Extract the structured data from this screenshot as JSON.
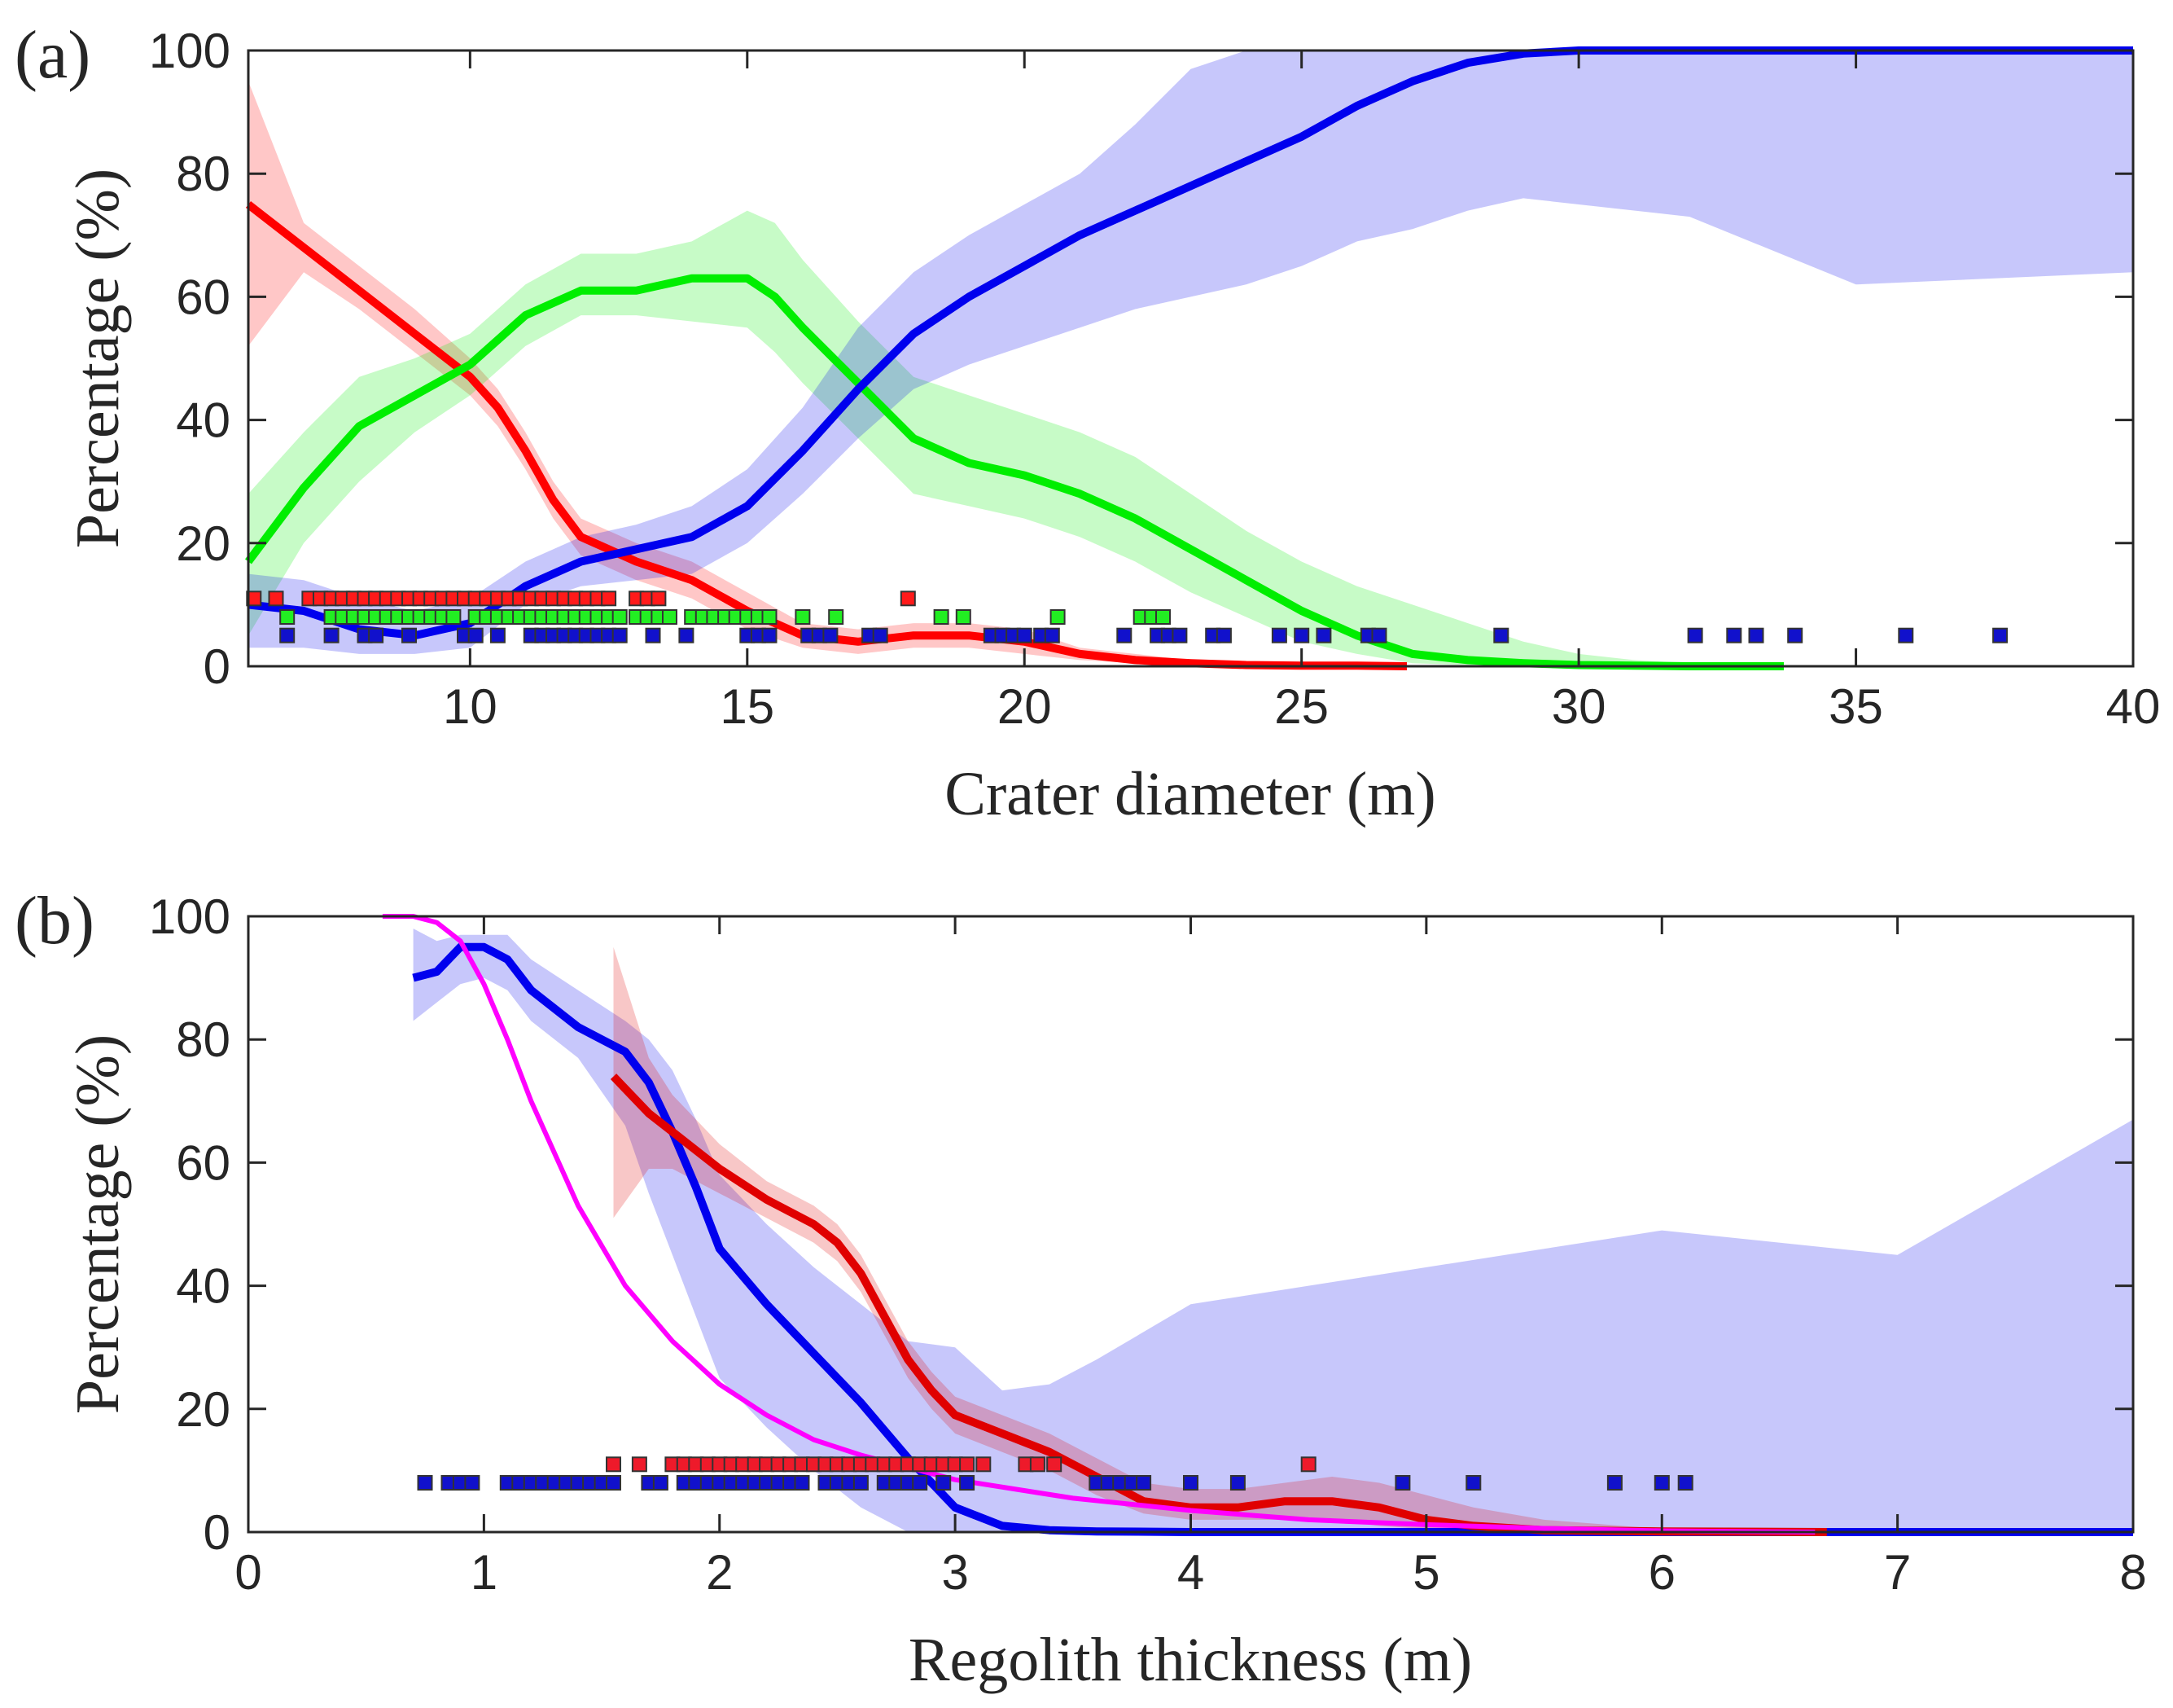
{
  "chart_data": [
    {
      "type": "line",
      "panel_label": "(a)",
      "xlabel": "Crater diameter (m)",
      "ylabel": "Percentage (%)",
      "xlim": [
        6,
        40
      ],
      "ylim": [
        0,
        100
      ],
      "xticks": [
        10,
        15,
        20,
        25,
        30,
        35,
        40
      ],
      "yticks": [
        0,
        20,
        40,
        60,
        80,
        100
      ],
      "series": [
        {
          "name": "red",
          "color": "#ff0000",
          "x": [
            6,
            7,
            8,
            9,
            10,
            10.5,
            11,
            11.5,
            12,
            13,
            14,
            15,
            16,
            17,
            18,
            19,
            20,
            21,
            22,
            23,
            24,
            25,
            26,
            26.9
          ],
          "y": [
            75,
            68,
            61,
            54,
            47,
            42,
            35,
            27,
            21,
            17,
            14,
            9,
            5,
            4,
            5,
            5,
            4,
            2,
            1,
            0.5,
            0.2,
            0.1,
            0.1,
            0
          ],
          "band_lower": [
            52,
            64,
            58,
            51,
            44,
            39,
            32,
            24,
            18,
            14,
            11,
            6,
            3,
            2,
            3,
            3,
            2,
            1,
            0.5,
            0.1,
            0,
            0,
            0,
            0
          ],
          "band_upper": [
            95,
            72,
            65,
            58,
            50,
            45,
            38,
            30,
            24,
            20,
            17,
            12,
            7,
            6,
            7,
            7,
            6,
            3,
            2,
            1,
            0.5,
            0.3,
            0.2,
            0.1
          ]
        },
        {
          "name": "green",
          "color": "#00ee00",
          "x": [
            6,
            7,
            8,
            9,
            10,
            11,
            12,
            13,
            14,
            15,
            15.5,
            16,
            17,
            18,
            19,
            20,
            21,
            22,
            23,
            24,
            25,
            26,
            27,
            28,
            29,
            30,
            31,
            32,
            33,
            33.7
          ],
          "y": [
            17,
            29,
            39,
            44,
            49,
            57,
            61,
            61,
            63,
            63,
            60,
            55,
            46,
            37,
            33,
            31,
            28,
            24,
            19,
            14,
            9,
            5,
            2,
            1,
            0.5,
            0.2,
            0.1,
            0,
            0,
            0
          ],
          "band_lower": [
            5,
            20,
            30,
            38,
            44,
            52,
            57,
            57,
            56,
            55,
            51,
            46,
            37,
            28,
            26,
            24,
            21,
            17,
            12,
            8,
            4,
            2,
            0.5,
            0.2,
            0,
            0,
            0,
            0,
            0,
            0
          ],
          "band_upper": [
            28,
            38,
            47,
            50,
            54,
            62,
            67,
            67,
            69,
            74,
            72,
            66,
            56,
            47,
            44,
            41,
            38,
            34,
            28,
            22,
            17,
            13,
            10,
            7,
            4,
            2,
            1,
            0.5,
            0.2,
            0
          ]
        },
        {
          "name": "blue",
          "color": "#0000ee",
          "x": [
            6,
            7,
            8,
            9,
            10,
            11,
            12,
            13,
            14,
            15,
            16,
            17,
            18,
            19,
            20,
            21,
            22,
            23,
            24,
            25,
            26,
            27,
            28,
            29,
            30,
            32,
            35,
            40
          ],
          "y": [
            10,
            9,
            6,
            5,
            7,
            13,
            17,
            19,
            21,
            26,
            35,
            45,
            54,
            60,
            65,
            70,
            74,
            78,
            82,
            86,
            91,
            95,
            98,
            99.5,
            100,
            100,
            100,
            100
          ],
          "band_lower": [
            3,
            3,
            2,
            2,
            3,
            10,
            13,
            14,
            15,
            20,
            28,
            37,
            45,
            49,
            52,
            55,
            58,
            60,
            62,
            65,
            69,
            71,
            74,
            76,
            75,
            73,
            62,
            64
          ],
          "band_upper": [
            15,
            14,
            11,
            9,
            11,
            17,
            21,
            23,
            26,
            32,
            42,
            55,
            64,
            70,
            75,
            80,
            88,
            97,
            100,
            100,
            100,
            100,
            100,
            100,
            100,
            100,
            100,
            100
          ]
        }
      ],
      "scatter": [
        {
          "name": "red",
          "color": "#ff1a1a",
          "y": 11,
          "x": [
            6.1,
            6.5,
            7.1,
            7.3,
            7.5,
            7.7,
            7.9,
            8.1,
            8.3,
            8.5,
            8.7,
            8.9,
            9.1,
            9.3,
            9.5,
            9.7,
            9.9,
            10.1,
            10.3,
            10.5,
            10.7,
            10.9,
            11.1,
            11.3,
            11.5,
            11.7,
            11.9,
            12.1,
            12.3,
            12.5,
            13.0,
            13.2,
            13.4,
            17.9
          ]
        },
        {
          "name": "green",
          "color": "#22ee22",
          "y": 8,
          "x": [
            6.7,
            7.5,
            7.7,
            7.9,
            8.1,
            8.3,
            8.5,
            8.7,
            8.9,
            9.1,
            9.3,
            9.5,
            9.7,
            10.1,
            10.3,
            10.5,
            10.7,
            10.9,
            11.1,
            11.3,
            11.5,
            11.7,
            11.9,
            12.1,
            12.3,
            12.5,
            12.7,
            13.0,
            13.2,
            13.4,
            13.6,
            14.0,
            14.2,
            14.4,
            14.6,
            14.8,
            15.0,
            15.2,
            15.4,
            16.0,
            16.6,
            18.5,
            18.9,
            20.6,
            22.1,
            22.3,
            22.5
          ]
        },
        {
          "name": "blue",
          "color": "#1111cc",
          "y": 5,
          "x": [
            6.7,
            7.5,
            8.1,
            8.3,
            8.9,
            9.9,
            10.1,
            10.5,
            11.1,
            11.3,
            11.5,
            11.7,
            11.9,
            12.1,
            12.3,
            12.5,
            12.7,
            13.3,
            13.9,
            15.0,
            15.2,
            15.4,
            16.1,
            16.3,
            16.5,
            17.2,
            17.4,
            19.4,
            19.6,
            19.8,
            20.0,
            20.3,
            20.5,
            21.8,
            22.4,
            22.6,
            22.8,
            23.4,
            23.6,
            24.6,
            25.0,
            25.4,
            26.2,
            26.4,
            28.6,
            32.1,
            32.8,
            33.2,
            33.9,
            35.9,
            37.6
          ]
        }
      ]
    },
    {
      "type": "line",
      "panel_label": "(b)",
      "xlabel": "Regolith thickness (m)",
      "ylabel": "Percentage (%)",
      "xlim": [
        0,
        8
      ],
      "ylim": [
        0,
        100
      ],
      "xticks": [
        0,
        1,
        2,
        3,
        4,
        5,
        6,
        7,
        8
      ],
      "yticks": [
        0,
        20,
        40,
        60,
        80,
        100
      ],
      "series": [
        {
          "name": "blue",
          "color": "#0000ee",
          "x": [
            0.7,
            0.8,
            0.9,
            1.0,
            1.1,
            1.2,
            1.4,
            1.6,
            1.7,
            1.8,
            1.9,
            2.0,
            2.2,
            2.4,
            2.6,
            2.8,
            3.0,
            3.2,
            3.4,
            3.6,
            4.0,
            5.0,
            6.0,
            7.0,
            8.0
          ],
          "y": [
            90,
            91,
            95,
            95,
            93,
            88,
            82,
            78,
            73,
            65,
            56,
            46,
            37,
            29,
            21,
            12,
            4,
            1,
            0.3,
            0.1,
            0,
            0,
            0,
            0,
            0
          ],
          "band_lower": [
            83,
            86,
            89,
            90,
            88,
            83,
            77,
            66,
            55,
            45,
            35,
            25,
            17,
            10,
            4,
            0,
            0,
            0,
            0,
            0,
            0,
            0,
            0,
            0,
            0
          ],
          "band_upper": [
            98,
            96,
            97,
            97,
            97,
            93,
            88,
            83,
            80,
            75,
            67,
            58,
            50,
            43,
            37,
            31,
            30,
            23,
            24,
            28,
            37,
            43,
            49,
            45,
            67
          ]
        },
        {
          "name": "red",
          "color": "#e00000",
          "x": [
            1.55,
            1.7,
            1.8,
            2.0,
            2.2,
            2.4,
            2.5,
            2.6,
            2.7,
            2.8,
            2.9,
            3.0,
            3.2,
            3.4,
            3.6,
            3.8,
            4.0,
            4.2,
            4.4,
            4.6,
            4.8,
            5.0,
            5.2,
            5.5,
            6.0,
            6.7
          ],
          "y": [
            74,
            68,
            65,
            59,
            54,
            50,
            47,
            42,
            35,
            28,
            23,
            19,
            16,
            13,
            9,
            5,
            4,
            4,
            5,
            5,
            4,
            2,
            1,
            0.3,
            0.1,
            0
          ],
          "band_lower": [
            51,
            59,
            59,
            55,
            51,
            47,
            44,
            39,
            32,
            25,
            20,
            16,
            13,
            10,
            6,
            3,
            2,
            2,
            2,
            2,
            1,
            0.5,
            0.2,
            0,
            0,
            0
          ],
          "band_upper": [
            95,
            77,
            71,
            63,
            57,
            53,
            50,
            45,
            38,
            31,
            26,
            22,
            19,
            16,
            12,
            8,
            7,
            7,
            8,
            9,
            8,
            6,
            4,
            2,
            0.5,
            0.1
          ]
        },
        {
          "name": "magenta",
          "color": "#ff00ff",
          "x": [
            0.57,
            0.7,
            0.8,
            0.9,
            1.0,
            1.1,
            1.2,
            1.4,
            1.6,
            1.8,
            2.0,
            2.2,
            2.4,
            2.6,
            2.8,
            3.0,
            3.5,
            4.0,
            4.5,
            5.0,
            5.5,
            6.0,
            6.65
          ],
          "y": [
            100,
            100,
            99,
            96,
            89,
            80,
            70,
            53,
            40,
            31,
            24,
            19,
            15,
            12.5,
            10.5,
            8.5,
            5.5,
            3.5,
            2,
            1.2,
            0.6,
            0.2,
            0
          ],
          "band_lower": null,
          "band_upper": null
        }
      ],
      "scatter": [
        {
          "name": "red",
          "color": "#ee1a2a",
          "y": 11,
          "x": [
            1.55,
            1.66,
            1.8,
            1.85,
            1.9,
            1.95,
            2.0,
            2.05,
            2.1,
            2.15,
            2.2,
            2.25,
            2.3,
            2.35,
            2.4,
            2.45,
            2.5,
            2.55,
            2.6,
            2.65,
            2.7,
            2.75,
            2.8,
            2.85,
            2.9,
            2.95,
            3.0,
            3.05,
            3.12,
            3.3,
            3.35,
            3.42,
            4.5
          ]
        },
        {
          "name": "blue",
          "color": "#1111cc",
          "y": 8,
          "x": [
            0.75,
            0.85,
            0.9,
            0.95,
            1.1,
            1.15,
            1.2,
            1.25,
            1.3,
            1.35,
            1.4,
            1.45,
            1.5,
            1.55,
            1.7,
            1.75,
            1.85,
            1.9,
            1.95,
            2.0,
            2.05,
            2.1,
            2.15,
            2.2,
            2.25,
            2.3,
            2.35,
            2.45,
            2.5,
            2.55,
            2.6,
            2.7,
            2.75,
            2.8,
            2.85,
            2.95,
            3.05,
            3.6,
            3.65,
            3.7,
            3.75,
            3.8,
            4.0,
            4.2,
            4.9,
            5.2,
            5.8,
            6.0,
            6.1
          ]
        }
      ]
    }
  ]
}
